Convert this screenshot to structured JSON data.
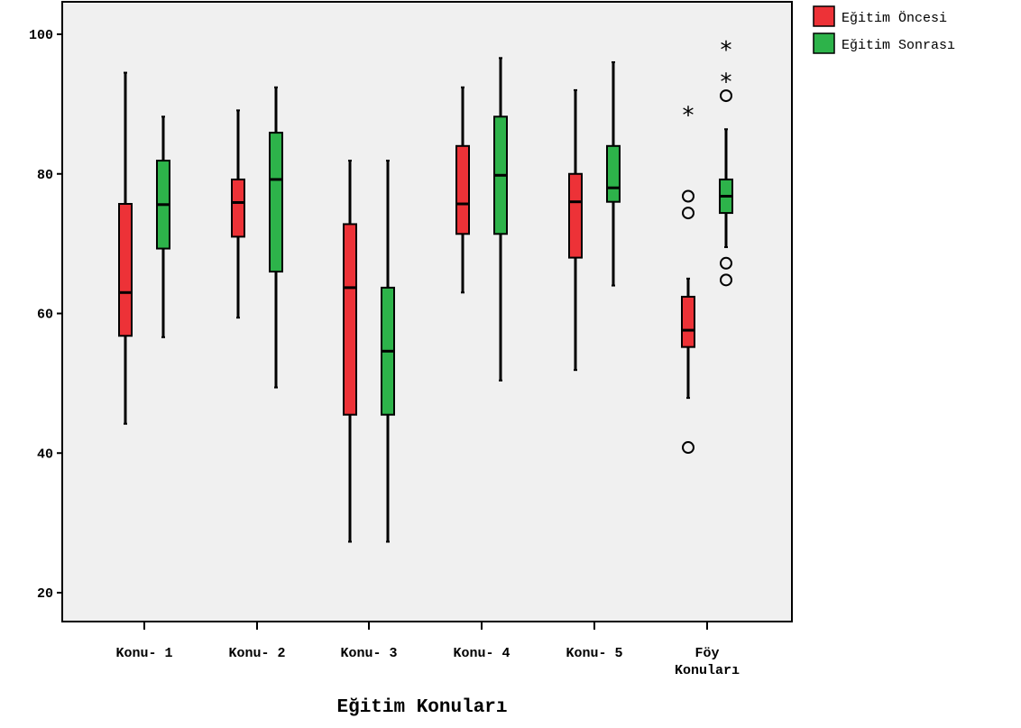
{
  "chart_data": {
    "type": "boxplot",
    "xlabel": "Eğitim Konuları",
    "ylabel": "",
    "ylim": [
      15,
      105
    ],
    "yticks": [
      20,
      40,
      60,
      80,
      100
    ],
    "categories": [
      "Konu- 1",
      "Konu- 2",
      "Konu- 3",
      "Konu- 4",
      "Konu- 5",
      [
        "Föy",
        "Konuları"
      ]
    ],
    "colors": {
      "Eğitim Öncesi": "#ed3237",
      "Eğitim Sonrası": "#2db34a",
      "plot_bg": "#f0f0f0"
    },
    "legend": {
      "position": "top-right",
      "entries": [
        "Eğitim Öncesi",
        "Eğitim Sonrası"
      ]
    },
    "grid": false,
    "series": [
      {
        "name": "Eğitim Öncesi",
        "boxes": [
          {
            "whisker_low": 44.2,
            "q1": 56.8,
            "median": 63,
            "q3": 75.7,
            "whisker_high": 94.5,
            "outliers": [],
            "extremes": []
          },
          {
            "whisker_low": 59.4,
            "q1": 71,
            "median": 75.9,
            "q3": 79.2,
            "whisker_high": 89.1,
            "outliers": [],
            "extremes": []
          },
          {
            "whisker_low": 27.3,
            "q1": 45.5,
            "median": 63.7,
            "q3": 72.8,
            "whisker_high": 81.9,
            "outliers": [],
            "extremes": []
          },
          {
            "whisker_low": 63,
            "q1": 71.4,
            "median": 75.7,
            "q3": 84,
            "whisker_high": 92.4,
            "outliers": [],
            "extremes": []
          },
          {
            "whisker_low": 51.9,
            "q1": 68,
            "median": 76,
            "q3": 80,
            "whisker_high": 92,
            "outliers": [],
            "extremes": []
          },
          {
            "whisker_low": 47.9,
            "q1": 55.2,
            "median": 57.6,
            "q3": 62.4,
            "whisker_high": 65,
            "outliers": [
              74.4,
              76.8,
              40.8
            ],
            "extremes": [
              88.8
            ]
          }
        ]
      },
      {
        "name": "Eğitim Sonrası",
        "boxes": [
          {
            "whisker_low": 56.6,
            "q1": 69.3,
            "median": 75.6,
            "q3": 81.9,
            "whisker_high": 88.2,
            "outliers": [],
            "extremes": []
          },
          {
            "whisker_low": 49.4,
            "q1": 66,
            "median": 79.2,
            "q3": 85.9,
            "whisker_high": 92.4,
            "outliers": [],
            "extremes": []
          },
          {
            "whisker_low": 27.3,
            "q1": 45.5,
            "median": 54.6,
            "q3": 63.7,
            "whisker_high": 81.9,
            "outliers": [],
            "extremes": []
          },
          {
            "whisker_low": 50.4,
            "q1": 71.4,
            "median": 79.8,
            "q3": 88.2,
            "whisker_high": 96.6,
            "outliers": [],
            "extremes": []
          },
          {
            "whisker_low": 64,
            "q1": 76,
            "median": 78,
            "q3": 84,
            "whisker_high": 96,
            "outliers": [],
            "extremes": []
          },
          {
            "whisker_low": 69.5,
            "q1": 74.4,
            "median": 76.8,
            "q3": 79.2,
            "whisker_high": 86.4,
            "outliers": [
              91.2,
              67.2,
              64.8
            ],
            "extremes": [
              93.6,
              98.2
            ]
          }
        ]
      }
    ]
  }
}
